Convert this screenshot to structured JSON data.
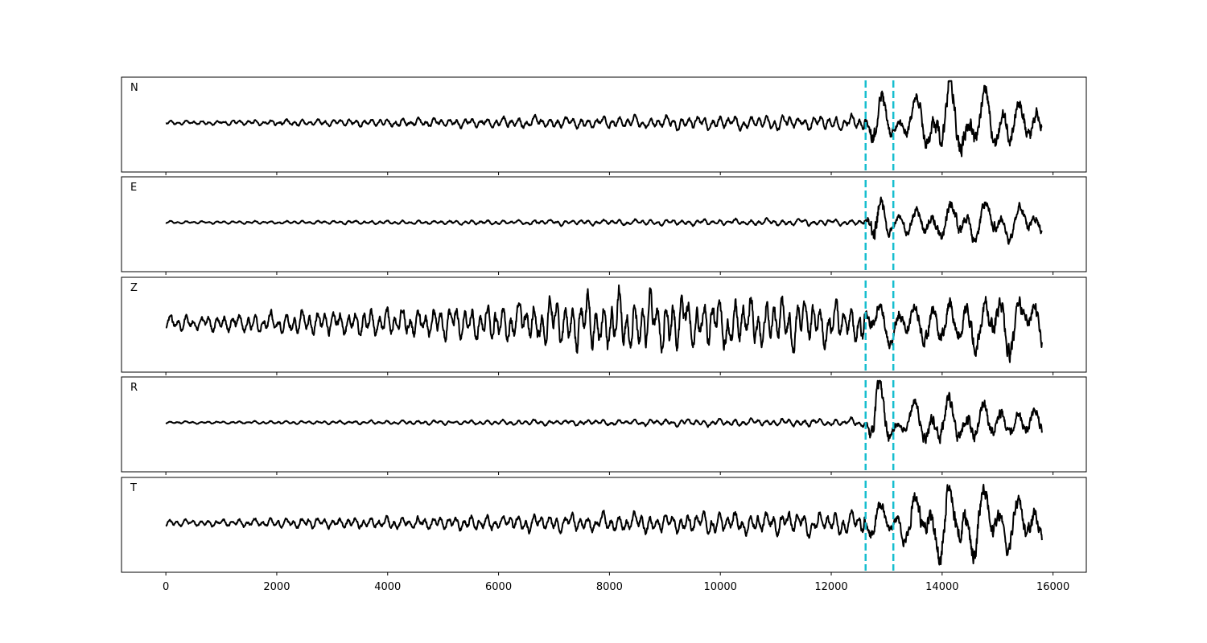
{
  "chart_data": {
    "type": "line",
    "title": "",
    "xlabel": "",
    "ylabel": "",
    "xlim": [
      -800,
      16600
    ],
    "x_ticks": [
      0,
      2000,
      4000,
      6000,
      8000,
      10000,
      12000,
      14000,
      16000
    ],
    "x_tick_labels": [
      "0",
      "2000",
      "4000",
      "6000",
      "8000",
      "10000",
      "12000",
      "14000",
      "16000"
    ],
    "x_range": [
      0,
      15800
    ],
    "markers": [
      {
        "x": 12620,
        "color": "#17becf",
        "style": "dashed"
      },
      {
        "x": 13120,
        "color": "#17becf",
        "style": "dashed"
      }
    ],
    "series": [
      {
        "name": "N",
        "color": "#000000",
        "segments": [
          [
            0,
            0.05
          ],
          [
            6000,
            0.13
          ],
          [
            12600,
            0.18
          ],
          [
            12780,
            0.95
          ],
          [
            13130,
            0.32
          ],
          [
            14020,
            0.92
          ],
          [
            15800,
            0.58
          ]
        ]
      },
      {
        "name": "E",
        "color": "#000000",
        "segments": [
          [
            0,
            0.03
          ],
          [
            6000,
            0.06
          ],
          [
            12600,
            0.08
          ],
          [
            12780,
            0.98
          ],
          [
            13130,
            0.28
          ],
          [
            14020,
            0.55
          ],
          [
            15800,
            0.35
          ]
        ]
      },
      {
        "name": "Z",
        "color": "#000000",
        "segments": [
          [
            0,
            0.18
          ],
          [
            6000,
            0.45
          ],
          [
            8000,
            0.72
          ],
          [
            12600,
            0.5
          ],
          [
            12780,
            0.5
          ],
          [
            13130,
            0.55
          ],
          [
            15200,
            0.8
          ],
          [
            15800,
            0.55
          ]
        ]
      },
      {
        "name": "R",
        "color": "#000000",
        "segments": [
          [
            0,
            0.03
          ],
          [
            6000,
            0.06
          ],
          [
            12600,
            0.1
          ],
          [
            12780,
            0.95
          ],
          [
            13130,
            0.32
          ],
          [
            14020,
            0.6
          ],
          [
            15800,
            0.38
          ]
        ]
      },
      {
        "name": "T",
        "color": "#000000",
        "segments": [
          [
            0,
            0.08
          ],
          [
            6000,
            0.2
          ],
          [
            12600,
            0.3
          ],
          [
            12780,
            0.55
          ],
          [
            13130,
            0.42
          ],
          [
            14020,
            0.95
          ],
          [
            15800,
            0.6
          ]
        ]
      }
    ]
  }
}
